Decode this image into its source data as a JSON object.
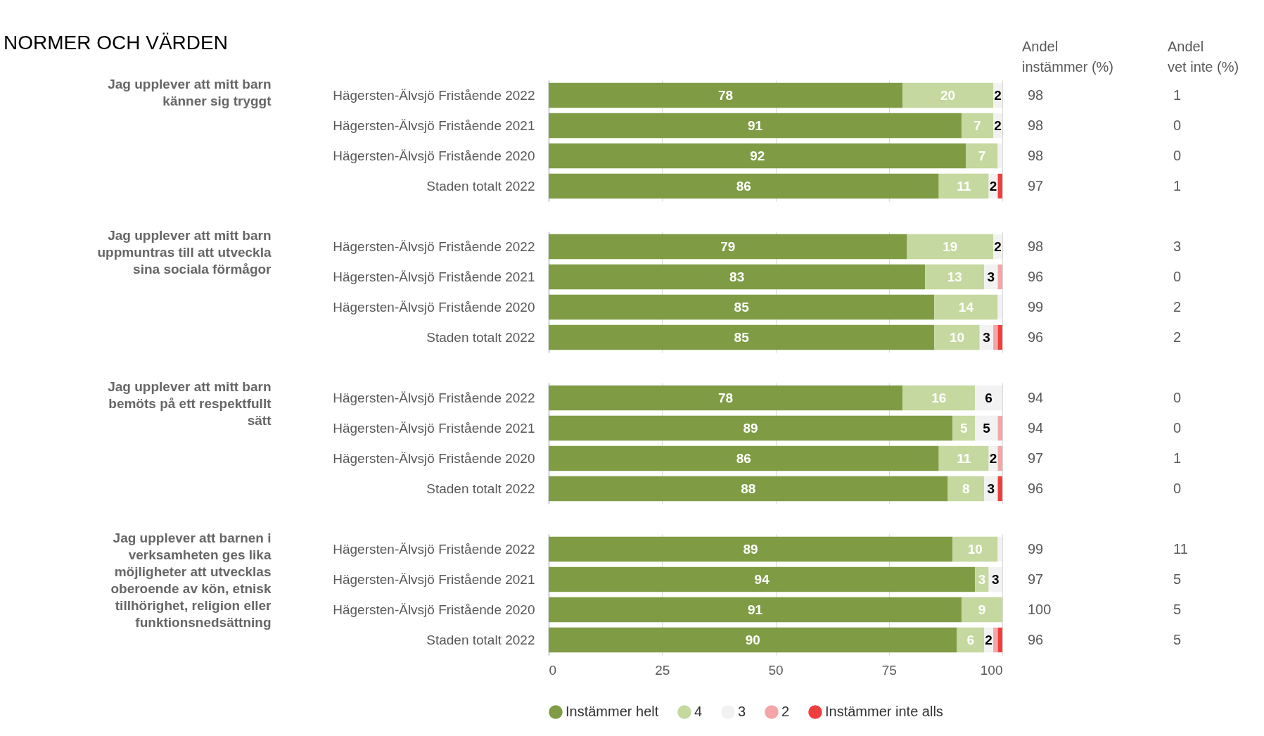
{
  "chart_data": [
    {
      "type": "bar",
      "title": "NORMER OCH VÄRDEN",
      "ylabel": "Jag upplever att mitt barn känner sig tryggt",
      "orientation": "horizontal",
      "stacked": true,
      "grid": "x",
      "legend": false,
      "tick_labels": "y",
      "xlim": [
        0,
        100
      ],
      "xticks": [
        0,
        25,
        50,
        75,
        100
      ],
      "categories": [
        "Hägersten-Älvsjö Fristående 2022",
        "Hägersten-Älvsjö Fristående 2021",
        "Hägersten-Älvsjö Fristående 2020",
        "Staden totalt 2022"
      ],
      "series": [
        {
          "color": "#7f9c45",
          "values": [
            78,
            91,
            92,
            86
          ],
          "value_labels": [
            "78",
            "91",
            "92",
            "86"
          ]
        },
        {
          "color": "#c5d89f",
          "values": [
            20,
            7,
            7,
            11
          ],
          "value_labels": [
            "20",
            "7",
            "7",
            "11"
          ]
        },
        {
          "color": "#f2f2f2",
          "values": [
            2,
            2,
            1,
            2
          ],
          "value_labels": [
            "2",
            "2",
            null,
            "2"
          ]
        },
        {
          "color": "#f4a6a6",
          "values": [
            null,
            null,
            null,
            null
          ],
          "value_labels": [
            null,
            null,
            null,
            null
          ]
        },
        {
          "color": "#f03e3e",
          "values": [
            null,
            null,
            null,
            1
          ],
          "value_labels": [
            null,
            null,
            null,
            null
          ]
        }
      ]
    },
    {
      "type": "bar",
      "ylabel": "Jag upplever att mitt barn uppmuntras till att utveckla sina sociala förmågor",
      "orientation": "horizontal",
      "stacked": true,
      "grid": "x",
      "legend": false,
      "tick_labels": "y",
      "xlim": [
        0,
        100
      ],
      "xticks": [
        0,
        25,
        50,
        75,
        100
      ],
      "categories": [
        "Hägersten-Älvsjö Fristående 2022",
        "Hägersten-Älvsjö Fristående 2021",
        "Hägersten-Älvsjö Fristående 2020",
        "Staden totalt 2022"
      ],
      "series": [
        {
          "color": "#7f9c45",
          "values": [
            79,
            83,
            85,
            85
          ],
          "value_labels": [
            "79",
            "83",
            "85",
            "85"
          ]
        },
        {
          "color": "#c5d89f",
          "values": [
            19,
            13,
            14,
            10
          ],
          "value_labels": [
            "19",
            "13",
            "14",
            "10"
          ]
        },
        {
          "color": "#f2f2f2",
          "values": [
            2,
            3,
            1,
            3
          ],
          "value_labels": [
            "2",
            "3",
            null,
            "3"
          ]
        },
        {
          "color": "#f4a6a6",
          "values": [
            null,
            1,
            null,
            1
          ],
          "value_labels": [
            null,
            null,
            null,
            null
          ]
        },
        {
          "color": "#f03e3e",
          "values": [
            null,
            null,
            null,
            1
          ],
          "value_labels": [
            null,
            null,
            null,
            null
          ]
        }
      ]
    },
    {
      "type": "bar",
      "ylabel": "Jag upplever att mitt barn bemöts på ett respektfullt sätt",
      "orientation": "horizontal",
      "stacked": true,
      "grid": "x",
      "legend": false,
      "tick_labels": "y",
      "xlim": [
        0,
        100
      ],
      "xticks": [
        0,
        25,
        50,
        75,
        100
      ],
      "categories": [
        "Hägersten-Älvsjö Fristående 2022",
        "Hägersten-Älvsjö Fristående 2021",
        "Hägersten-Älvsjö Fristående 2020",
        "Staden totalt 2022"
      ],
      "series": [
        {
          "color": "#7f9c45",
          "values": [
            78,
            89,
            86,
            88
          ],
          "value_labels": [
            "78",
            "89",
            "86",
            "88"
          ]
        },
        {
          "color": "#c5d89f",
          "values": [
            16,
            5,
            11,
            8
          ],
          "value_labels": [
            "16",
            "5",
            "11",
            "8"
          ]
        },
        {
          "color": "#f2f2f2",
          "values": [
            6,
            5,
            2,
            3
          ],
          "value_labels": [
            "6",
            "5",
            "2",
            "3"
          ]
        },
        {
          "color": "#f4a6a6",
          "values": [
            null,
            1,
            1,
            null
          ],
          "value_labels": [
            null,
            null,
            null,
            null
          ]
        },
        {
          "color": "#f03e3e",
          "values": [
            null,
            null,
            null,
            1
          ],
          "value_labels": [
            null,
            null,
            null,
            null
          ]
        }
      ]
    },
    {
      "type": "bar",
      "ylabel": "Jag upplever att barnen i verksamheten ges lika möjligheter att utvecklas oberoende av kön, etnisk tillhörighet, religion eller funktionsnedsättning",
      "orientation": "horizontal",
      "stacked": true,
      "grid": "x",
      "legend": "bottom",
      "xlim": [
        0,
        100
      ],
      "xticks": [
        0,
        25,
        50,
        75,
        100
      ],
      "categories": [
        "Hägersten-Älvsjö Fristående 2022",
        "Hägersten-Älvsjö Fristående 2021",
        "Hägersten-Älvsjö Fristående 2020",
        "Staden totalt 2022"
      ],
      "series": [
        {
          "name": "Instämmer helt",
          "color": "#7f9c45",
          "values": [
            89,
            94,
            91,
            90
          ],
          "value_labels": [
            "89",
            "94",
            "91",
            "90"
          ]
        },
        {
          "name": "4",
          "color": "#c5d89f",
          "values": [
            10,
            3,
            9,
            6
          ],
          "value_labels": [
            "10",
            "3",
            "9",
            "6"
          ]
        },
        {
          "name": "3",
          "color": "#f2f2f2",
          "values": [
            1,
            3,
            null,
            2
          ],
          "value_labels": [
            null,
            "3",
            null,
            "2"
          ]
        },
        {
          "name": "2",
          "color": "#f4a6a6",
          "values": [
            null,
            null,
            null,
            1
          ],
          "value_labels": [
            null,
            null,
            null,
            null
          ]
        },
        {
          "name": "Instämmer inte alls",
          "color": "#f03e3e",
          "values": [
            null,
            null,
            null,
            1
          ],
          "value_labels": [
            null,
            null,
            null,
            null
          ]
        }
      ]
    },
    {
      "type": "other",
      "title": "Andel instämmer (%)",
      "annotations": [
        "98",
        "98",
        "98",
        "97",
        "98",
        "96",
        "99",
        "96",
        "94",
        "94",
        "97",
        "96",
        "99",
        "97",
        "100",
        "96"
      ]
    },
    {
      "type": "other",
      "title": "Andel vet inte (%)",
      "annotations": [
        "1",
        "0",
        "0",
        "1",
        "3",
        "0",
        "2",
        "2",
        "0",
        "0",
        "1",
        "0",
        "11",
        "5",
        "5",
        "5"
      ]
    }
  ]
}
